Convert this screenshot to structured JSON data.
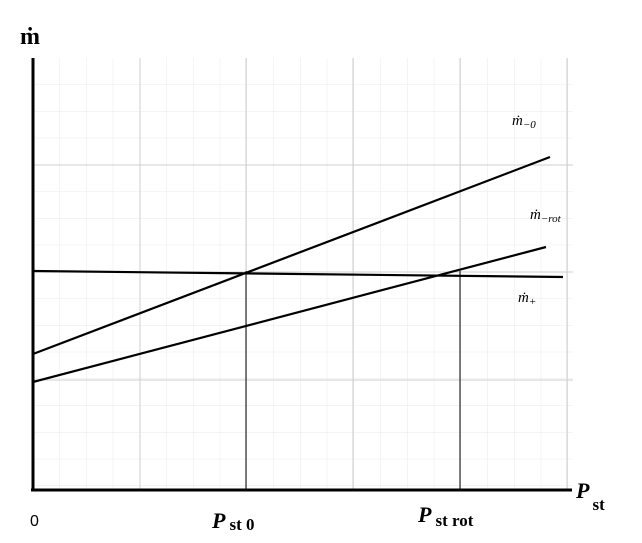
{
  "axes": {
    "y_label": "ṁ",
    "x_label": {
      "main": "P",
      "sub": "st"
    },
    "origin": "0"
  },
  "markers": [
    {
      "main": "P",
      "sub": "st 0"
    },
    {
      "main": "P",
      "sub": "st rot"
    }
  ],
  "curves": [
    {
      "main": "ṁ",
      "sub": "−0"
    },
    {
      "main": "ṁ",
      "sub": "−rot"
    },
    {
      "main": "ṁ",
      "sub": "+"
    }
  ]
}
